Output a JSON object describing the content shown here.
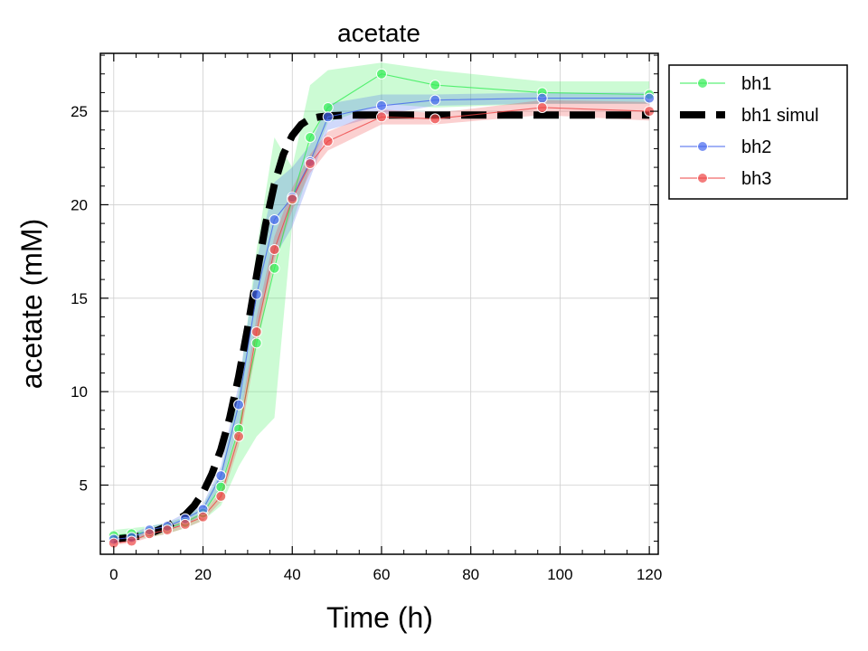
{
  "chart_data": {
    "type": "line",
    "title": "acetate",
    "xlabel": "Time (h)",
    "ylabel": "acetate (mM)",
    "xlim": [
      -3,
      122
    ],
    "ylim": [
      1.3,
      28.1
    ],
    "xticks": [
      0,
      20,
      40,
      60,
      80,
      100,
      120
    ],
    "yticks": [
      5,
      10,
      15,
      20,
      25
    ],
    "grid": true,
    "legend_position": "outside-top-right",
    "series": [
      {
        "name": "bh1",
        "style": "line-markers",
        "color": "#33ee55",
        "x": [
          0,
          4,
          8,
          12,
          16,
          20,
          24,
          28,
          32,
          36,
          40,
          44,
          48,
          60,
          72,
          96,
          120
        ],
        "y": [
          2.3,
          2.4,
          2.5,
          2.7,
          3.0,
          3.5,
          4.9,
          8.0,
          12.6,
          16.6,
          20.3,
          23.6,
          25.2,
          27.0,
          26.4,
          26.0,
          25.9
        ],
        "lower": [
          2.0,
          2.1,
          2.2,
          2.4,
          2.7,
          3.1,
          3.9,
          6.0,
          7.6,
          8.6,
          19.0,
          22.0,
          24.4,
          25.4,
          25.2,
          25.4,
          25.4
        ],
        "upper": [
          2.6,
          2.7,
          2.8,
          3.0,
          3.3,
          3.9,
          5.7,
          10.0,
          17.6,
          23.6,
          22.0,
          26.4,
          27.2,
          27.6,
          27.2,
          26.6,
          26.6
        ]
      },
      {
        "name": "bh1 simul",
        "style": "dashed",
        "color": "#000000",
        "x": [
          0,
          4,
          8,
          12,
          16,
          18,
          20,
          22,
          24,
          26,
          28,
          30,
          32,
          34,
          36,
          38,
          40,
          42,
          44,
          46,
          48,
          52,
          60,
          80,
          100,
          120
        ],
        "y": [
          2.1,
          2.2,
          2.4,
          2.8,
          3.4,
          3.9,
          4.6,
          5.6,
          6.9,
          8.6,
          10.8,
          13.4,
          16.2,
          18.9,
          21.1,
          22.7,
          23.7,
          24.3,
          24.6,
          24.7,
          24.75,
          24.8,
          24.8,
          24.8,
          24.8,
          24.8
        ]
      },
      {
        "name": "bh2",
        "style": "line-markers",
        "color": "#4466ee",
        "x": [
          0,
          4,
          8,
          12,
          16,
          20,
          24,
          28,
          32,
          36,
          40,
          44,
          48,
          60,
          72,
          96,
          120
        ],
        "y": [
          2.1,
          2.2,
          2.6,
          2.8,
          3.2,
          3.7,
          5.5,
          9.3,
          15.2,
          19.2,
          20.4,
          22.3,
          24.7,
          25.3,
          25.6,
          25.7,
          25.7
        ],
        "lower": [
          1.9,
          2.0,
          2.4,
          2.6,
          2.9,
          3.4,
          5.0,
          8.2,
          13.4,
          17.2,
          18.8,
          21.4,
          24.0,
          24.8,
          25.3,
          25.4,
          25.4
        ],
        "upper": [
          2.3,
          2.4,
          2.8,
          3.0,
          3.5,
          4.0,
          6.0,
          10.4,
          17.0,
          21.2,
          22.0,
          23.2,
          25.4,
          25.9,
          25.9,
          26.0,
          26.0
        ]
      },
      {
        "name": "bh3",
        "style": "line-markers",
        "color": "#ee4444",
        "x": [
          0,
          4,
          8,
          12,
          16,
          20,
          24,
          28,
          32,
          36,
          40,
          44,
          48,
          60,
          72,
          96,
          120
        ],
        "y": [
          1.9,
          2.0,
          2.4,
          2.6,
          2.9,
          3.3,
          4.4,
          7.6,
          13.2,
          17.6,
          20.3,
          22.2,
          23.4,
          24.7,
          24.6,
          25.2,
          25.0
        ],
        "lower": [
          1.8,
          1.9,
          2.2,
          2.4,
          2.7,
          3.1,
          4.1,
          7.1,
          12.4,
          16.9,
          19.7,
          21.7,
          22.9,
          24.3,
          24.3,
          24.8,
          24.5
        ],
        "upper": [
          2.0,
          2.1,
          2.6,
          2.8,
          3.1,
          3.5,
          4.7,
          8.1,
          14.0,
          18.3,
          20.9,
          22.7,
          23.9,
          25.1,
          24.9,
          25.6,
          25.5
        ]
      }
    ]
  }
}
